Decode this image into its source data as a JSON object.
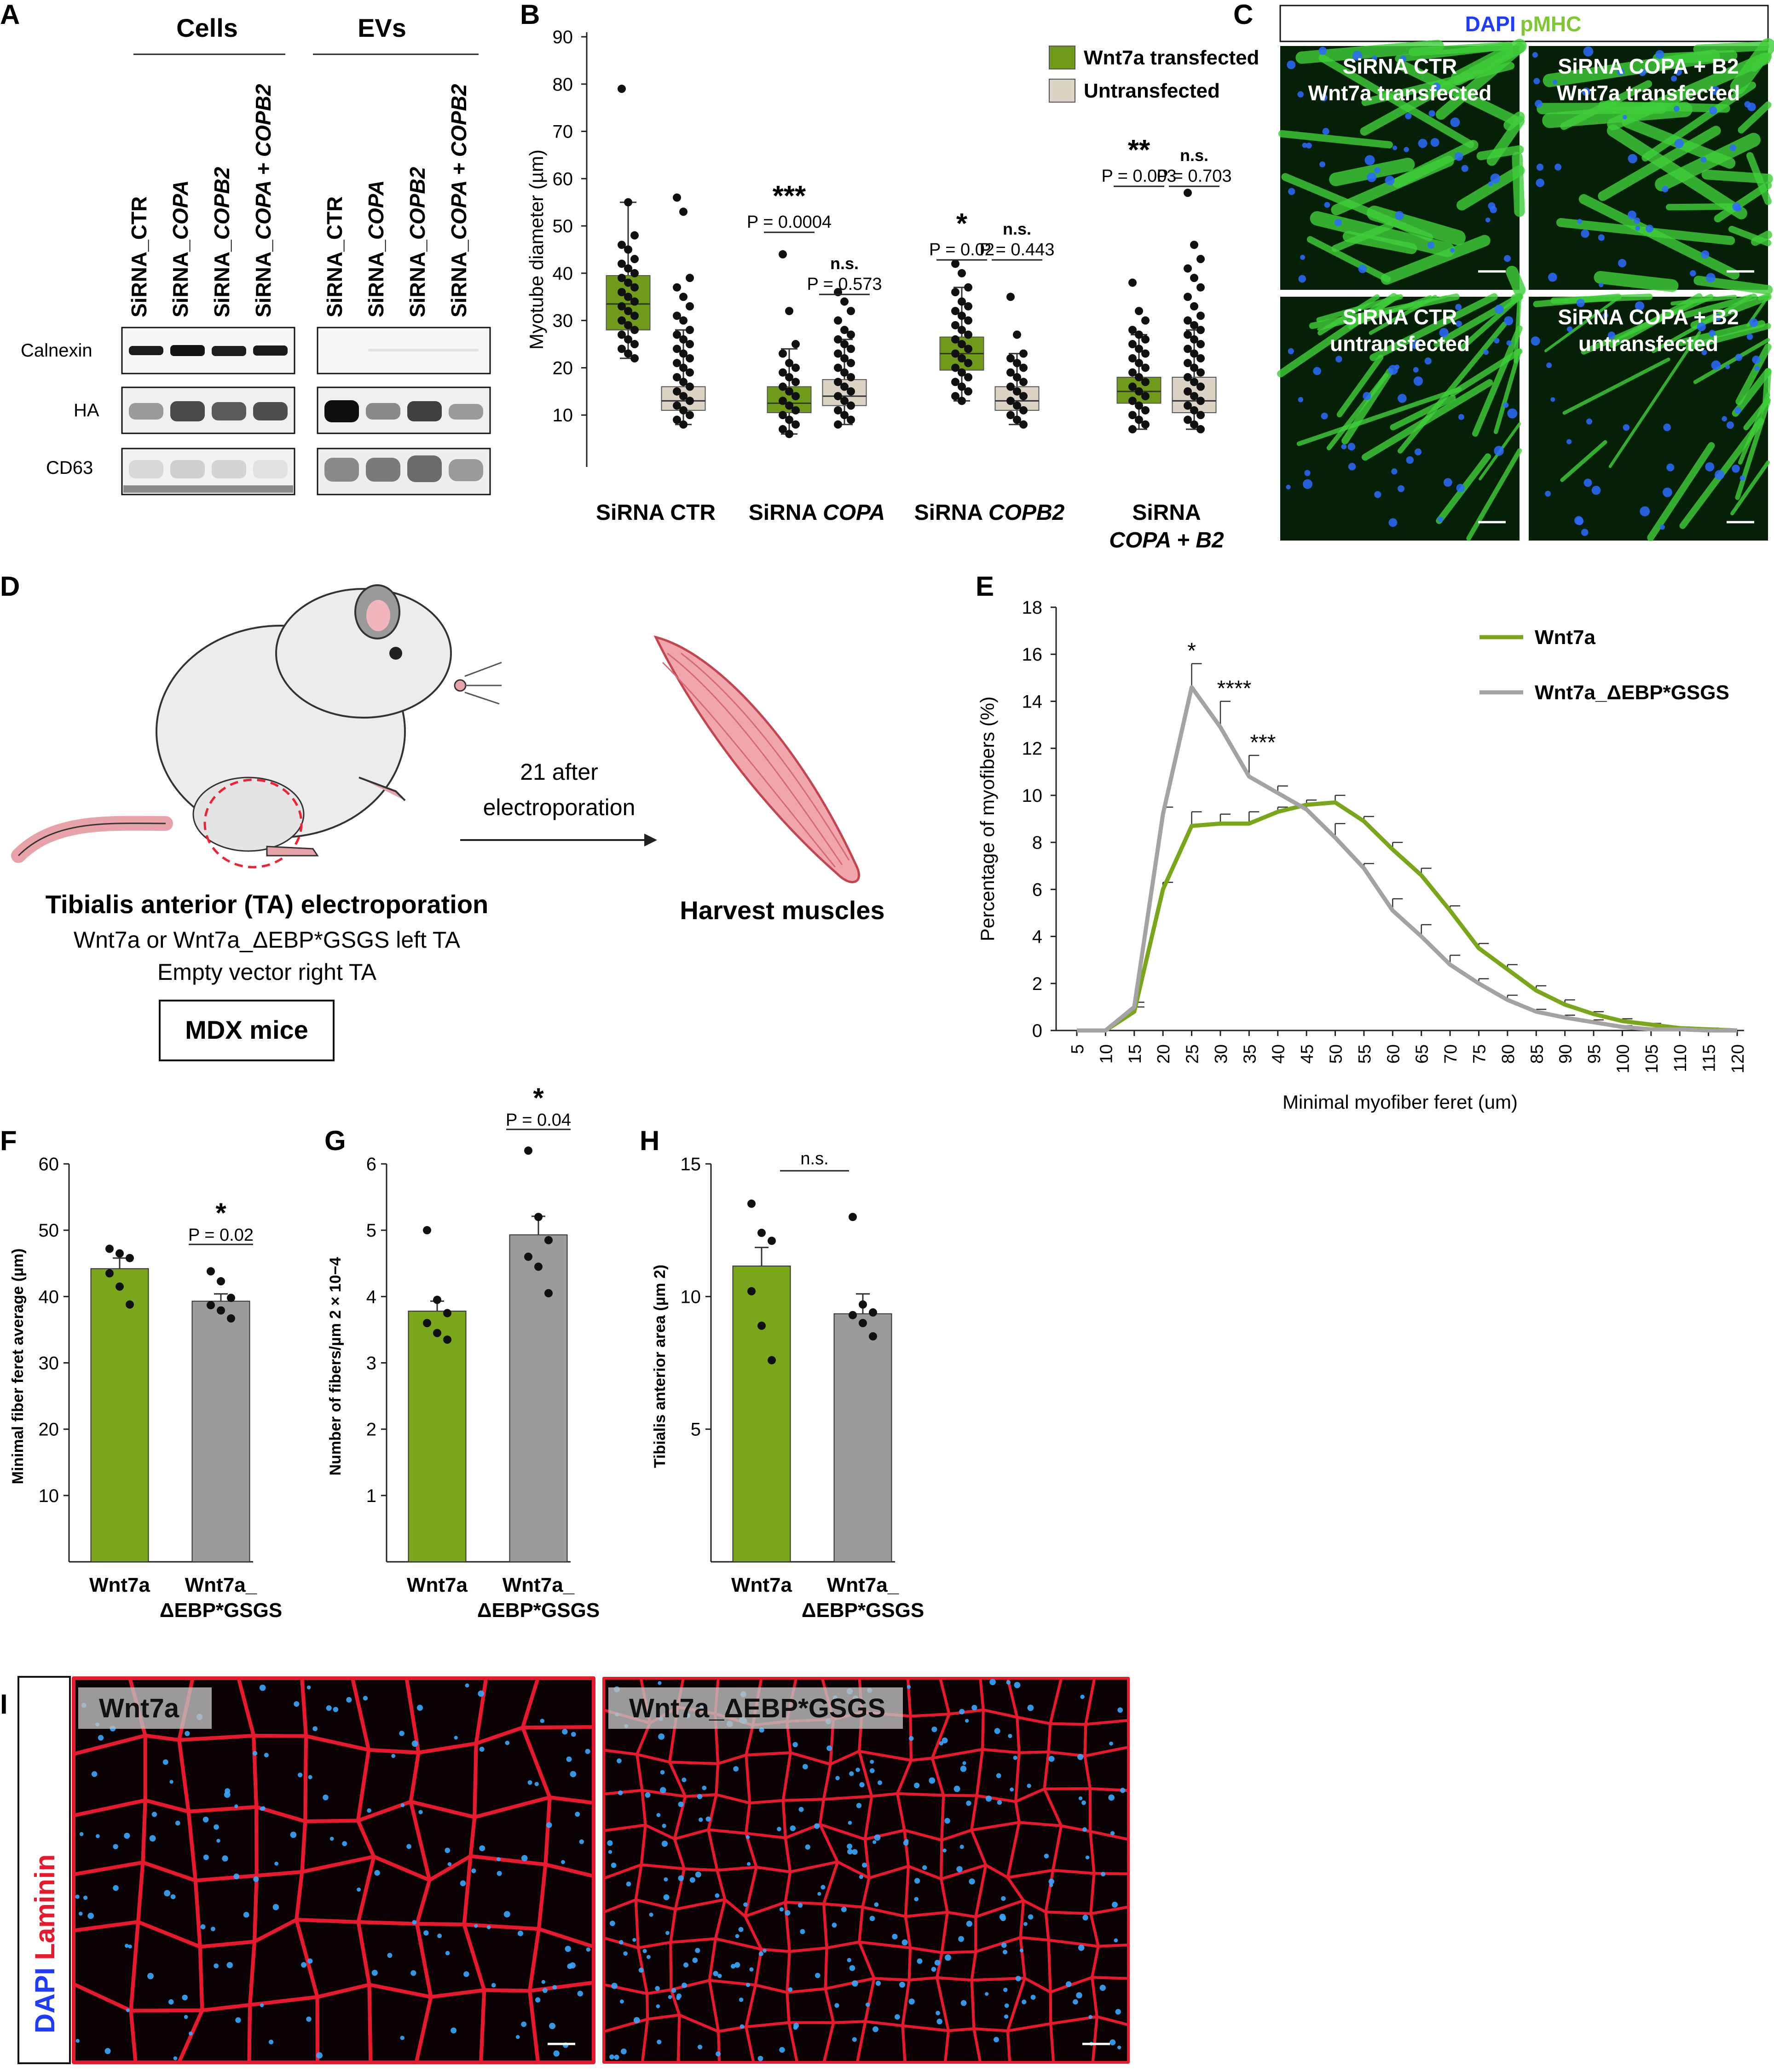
{
  "panels": {
    "A": {
      "letter": "A",
      "group_cells": "Cells",
      "group_evs": "EVs",
      "lanes": [
        "SiRNA_CTR",
        "SiRNA_COPA",
        "SiRNA_COPB2",
        "SiRNA_COPA + COPB2"
      ],
      "lane_prefix": "SiRNA_",
      "lane_suffixes": [
        "CTR",
        "COPA",
        "COPB2",
        "COPA + COPB2"
      ],
      "blots": [
        "Calnexin",
        "HA",
        "CD63"
      ]
    },
    "C": {
      "letter": "C",
      "stain_dapi": "DAPI",
      "stain_pmhc": "pMHC",
      "tiles": [
        {
          "line1": "SiRNA CTR",
          "line2": "Wnt7a transfected"
        },
        {
          "line1": "SiRNA COPA + B2",
          "line2": "Wnt7a transfected"
        },
        {
          "line1": "SiRNA CTR",
          "line2": "untransfected"
        },
        {
          "line1": "SiRNA COPA + B2",
          "line2": "untransfected"
        }
      ]
    },
    "D": {
      "letter": "D",
      "arrow_line1": "21 after",
      "arrow_line2": "electroporation",
      "harvest": "Harvest muscles",
      "title": "Tibialis anterior (TA) electroporation",
      "line2": "Wnt7a or Wnt7a_ΔEBP*GSGS left TA",
      "line3": "Empty vector right TA",
      "box": "MDX mice"
    },
    "I": {
      "letter": "I",
      "stain_dapi": "DAPI",
      "stain_laminin": "Laminin",
      "left_label": "Wnt7a",
      "right_label": "Wnt7a_ΔEBP*GSGS"
    }
  },
  "colors": {
    "green": "#7aa61c",
    "green_box": "#6f9a1a",
    "beige_box": "#ddd3c5",
    "grey": "#9b9b9b",
    "grey_line": "#a3a3a3",
    "laminin_red": "#e8192c",
    "dapi_blue": "#1e3cff",
    "pmhc_green": "#7ec832"
  },
  "chart_data": [
    {
      "panel": "B",
      "type": "box",
      "ylabel": "Myotube diameter (µm)",
      "ylim": [
        0,
        90
      ],
      "yticks": [
        10,
        20,
        30,
        40,
        50,
        60,
        70,
        80,
        90
      ],
      "groups": [
        "SiRNA CTR",
        "SiRNA COPA",
        "SiRNA COPB2",
        "SiRNA COPA + B2"
      ],
      "group_labels": [
        {
          "line1": "SiRNA CTR",
          "line2": ""
        },
        {
          "line1": "SiRNA COPA",
          "line2": ""
        },
        {
          "line1": "SiRNA COPB2",
          "line2": ""
        },
        {
          "line1": "SiRNA",
          "line2": "COPA + B2"
        }
      ],
      "legend": [
        "Wnt7a transfected",
        "Untransfected"
      ],
      "series": [
        {
          "name": "Wnt7a transfected",
          "boxes": [
            {
              "whisker_low": 22,
              "q1": 28,
              "median": 33.5,
              "q3": 39.5,
              "whisker_high": 55,
              "points": [
                79,
                55,
                48,
                46,
                45,
                43,
                42,
                41,
                40,
                39,
                38,
                37,
                36,
                35,
                34,
                33,
                32,
                31,
                30,
                29,
                28,
                27,
                26,
                25,
                24,
                23,
                22
              ]
            },
            {
              "whisker_low": 6,
              "q1": 10.5,
              "median": 12.5,
              "q3": 16,
              "whisker_high": 24,
              "points": [
                44,
                32,
                25,
                23,
                21,
                20,
                19,
                18,
                17,
                16,
                15,
                14,
                13,
                12,
                11,
                10,
                9,
                8,
                7,
                6
              ]
            },
            {
              "whisker_low": 13,
              "q1": 19.5,
              "median": 23,
              "q3": 26.5,
              "whisker_high": 37,
              "points": [
                42,
                40,
                37,
                36,
                34,
                33,
                32,
                31,
                30,
                29,
                28,
                27,
                26,
                25,
                24,
                23,
                22,
                21,
                20,
                19,
                18,
                17,
                16,
                15,
                14,
                13
              ]
            },
            {
              "whisker_low": 7,
              "q1": 12.5,
              "median": 15,
              "q3": 18,
              "whisker_high": 27,
              "points": [
                38,
                32,
                30,
                28,
                27,
                26,
                25,
                24,
                23,
                22,
                21,
                20,
                19,
                18,
                17,
                16,
                15,
                14,
                13,
                12,
                11,
                10,
                9,
                8,
                7
              ]
            }
          ]
        },
        {
          "name": "Untransfected",
          "boxes": [
            {
              "whisker_low": 8,
              "q1": 11,
              "median": 13,
              "q3": 16,
              "whisker_high": 28,
              "points": [
                56,
                53,
                39,
                37,
                35,
                33,
                31,
                30,
                28,
                27,
                26,
                25,
                24,
                23,
                22,
                21,
                20,
                19,
                18,
                17,
                16,
                15,
                14,
                13,
                12,
                11,
                10,
                9,
                8
              ]
            },
            {
              "whisker_low": 8,
              "q1": 12,
              "median": 14,
              "q3": 17.5,
              "whisker_high": 26,
              "points": [
                36,
                34,
                32,
                30,
                28,
                27,
                26,
                25,
                24,
                23,
                22,
                21,
                20,
                19,
                18,
                17,
                16,
                15,
                14,
                13,
                12,
                11,
                10,
                9,
                8
              ]
            },
            {
              "whisker_low": 8,
              "q1": 11,
              "median": 13,
              "q3": 16,
              "whisker_high": 23,
              "points": [
                35,
                27,
                23,
                22,
                21,
                20,
                19,
                18,
                17,
                16,
                15,
                14,
                13,
                12,
                11,
                10,
                9,
                8
              ]
            },
            {
              "whisker_low": 7,
              "q1": 10.5,
              "median": 13,
              "q3": 18,
              "whisker_high": 28,
              "points": [
                57,
                46,
                43,
                41,
                39,
                37,
                35,
                33,
                31,
                30,
                29,
                28,
                27,
                26,
                25,
                24,
                23,
                22,
                21,
                20,
                19,
                18,
                17,
                16,
                15,
                14,
                13,
                12,
                11,
                10,
                9,
                8,
                7
              ]
            }
          ]
        }
      ],
      "annotations": [
        {
          "group": 1,
          "pair": "between",
          "stars": "***",
          "p": "P = 0.0004"
        },
        {
          "group": 1,
          "pair": "untransfected",
          "stars": "n.s.",
          "p": "P = 0.573"
        },
        {
          "group": 2,
          "pair": "between",
          "stars": "*",
          "p": "P = 0.02"
        },
        {
          "group": 2,
          "pair": "untransfected",
          "stars": "n.s.",
          "p": "P = 0.443"
        },
        {
          "group": 3,
          "pair": "between",
          "stars": "**",
          "p": "P = 0.003"
        },
        {
          "group": 3,
          "pair": "untransfected",
          "stars": "n.s.",
          "p": "P = 0.703"
        }
      ]
    },
    {
      "panel": "E",
      "type": "line",
      "xlabel": "Minimal myofiber feret (um)",
      "ylabel": "Percentage of myofibers (%)",
      "ylim": [
        0,
        18
      ],
      "yticks": [
        0,
        2,
        4,
        6,
        8,
        10,
        12,
        14,
        16,
        18
      ],
      "x": [
        5,
        10,
        15,
        20,
        25,
        30,
        35,
        40,
        45,
        50,
        55,
        60,
        65,
        70,
        75,
        80,
        85,
        90,
        95,
        100,
        105,
        110,
        115,
        120
      ],
      "series": [
        {
          "name": "Wnt7a",
          "values": [
            0,
            0,
            0.8,
            6.0,
            8.7,
            8.8,
            8.8,
            9.3,
            9.6,
            9.7,
            8.9,
            7.7,
            6.6,
            5.1,
            3.5,
            2.6,
            1.7,
            1.1,
            0.7,
            0.4,
            0.25,
            0.1,
            0.05,
            0
          ],
          "errors": [
            0,
            0,
            0.2,
            0.3,
            0.6,
            0.4,
            0.5,
            0.2,
            0.2,
            0.3,
            0.2,
            0.3,
            0.3,
            0.2,
            0.2,
            0.2,
            0.2,
            0.2,
            0.1,
            0.1,
            0.05,
            0.05,
            0.05,
            0
          ]
        },
        {
          "name": "Wnt7a_ΔEBP*GSGS",
          "values": [
            0,
            0,
            1.0,
            9.2,
            14.6,
            12.9,
            10.8,
            10.1,
            9.4,
            8.2,
            6.9,
            5.1,
            4.0,
            2.8,
            2.0,
            1.3,
            0.8,
            0.55,
            0.35,
            0.15,
            0.05,
            0.05,
            0,
            0
          ],
          "errors": [
            0,
            0,
            0.2,
            0.3,
            1.0,
            1.1,
            0.9,
            0.3,
            0.2,
            0.6,
            0.2,
            0.5,
            0.5,
            0.4,
            0.2,
            0.2,
            0.1,
            0.1,
            0.1,
            0.05,
            0.02,
            0.02,
            0,
            0
          ]
        }
      ],
      "annotations": [
        {
          "x": 25,
          "text": "*"
        },
        {
          "x": 30,
          "text": "****"
        },
        {
          "x": 35,
          "text": "***"
        }
      ]
    },
    {
      "panel": "F",
      "type": "bar",
      "ylabel": "Minimal fiber feret average (µm)",
      "ylim": [
        0,
        60
      ],
      "yticks": [
        10,
        20,
        30,
        40,
        50,
        60
      ],
      "categories": [
        "Wnt7a",
        "Wnt7a_ΔEBP*GSGS"
      ],
      "category_labels": [
        {
          "line1": "Wnt7a",
          "line2": ""
        },
        {
          "line1": "Wnt7a_",
          "line2": "ΔEBP*GSGS"
        }
      ],
      "values": [
        44.2,
        39.3
      ],
      "errors": [
        1.6,
        1.1
      ],
      "points": [
        [
          47.2,
          46.5,
          45.8,
          43.5,
          41.5,
          38.8
        ],
        [
          43.8,
          42.3,
          39.8,
          38.7,
          37.9,
          36.7
        ]
      ],
      "significance": {
        "stars": "*",
        "p": "P = 0.02"
      }
    },
    {
      "panel": "G",
      "type": "bar",
      "ylabel": "Number of fibers/µm 2 × 10−4",
      "ylim": [
        0,
        6
      ],
      "yticks": [
        1,
        2,
        3,
        4,
        5,
        6
      ],
      "categories": [
        "Wnt7a",
        "Wnt7a_ΔEBP*GSGS"
      ],
      "category_labels": [
        {
          "line1": "Wnt7a",
          "line2": ""
        },
        {
          "line1": "Wnt7a_",
          "line2": "ΔEBP*GSGS"
        }
      ],
      "values": [
        3.78,
        4.93
      ],
      "errors": [
        0.15,
        0.28
      ],
      "points": [
        [
          5.0,
          3.95,
          3.75,
          3.6,
          3.45,
          3.35
        ],
        [
          6.2,
          5.2,
          4.85,
          4.6,
          4.45,
          4.05
        ]
      ],
      "significance": {
        "stars": "*",
        "p": "P = 0.04"
      }
    },
    {
      "panel": "H",
      "type": "bar",
      "ylabel": "Tibialis anterior area (µm 2)",
      "ylim": [
        0,
        15
      ],
      "yticks": [
        5,
        10,
        15
      ],
      "categories": [
        "Wnt7a",
        "Wnt7a_ΔEBP*GSGS"
      ],
      "category_labels": [
        {
          "line1": "Wnt7a",
          "line2": ""
        },
        {
          "line1": "Wnt7a_",
          "line2": "ΔEBP*GSGS"
        }
      ],
      "values": [
        11.15,
        9.35
      ],
      "errors": [
        0.7,
        0.75
      ],
      "points": [
        [
          13.5,
          12.4,
          12.1,
          10.2,
          8.9,
          7.6
        ],
        [
          13.0,
          9.7,
          9.4,
          9.3,
          9.0,
          8.5
        ]
      ],
      "significance": {
        "stars": "n.s.",
        "p": ""
      }
    }
  ]
}
